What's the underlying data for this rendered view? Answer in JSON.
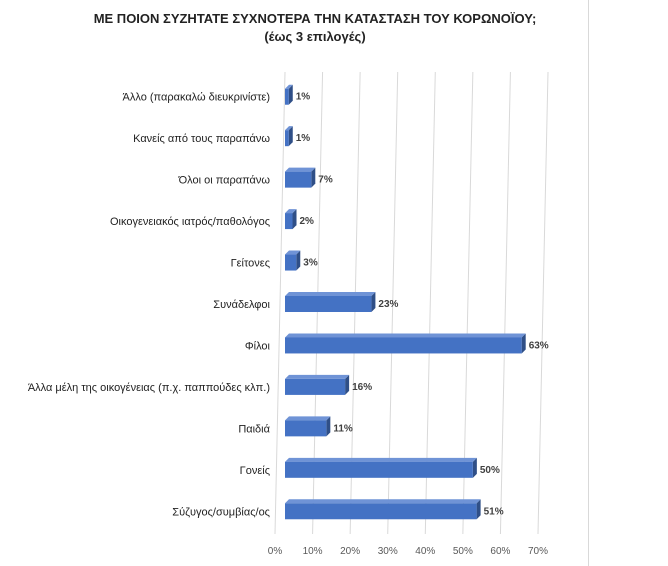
{
  "chart_data": {
    "type": "bar",
    "orientation": "horizontal",
    "title": "ΜΕ ΠΟΙΟΝ ΣΥΖΗΤΑΤΕ ΣΥΧΝΟΤΕΡΑ ΤΗΝ ΚΑΤΑΣΤΑΣΗ ΤΟΥ ΚΟΡΩΝΟΪΟΥ;",
    "subtitle": "(έως 3 επιλογές)",
    "categories": [
      "Άλλο (παρακαλώ διευκρινίστε)",
      "Κανείς από τους παραπάνω",
      "Όλοι οι παραπάνω",
      "Οικογενειακός ιατρός/παθολόγος",
      "Γείτονες",
      "Συνάδελφοι",
      "Φίλοι",
      "Άλλα μέλη της οικογένειας (π.χ. παππούδες κλπ.)",
      "Παιδιά",
      "Γονείς",
      "Σύζυγος/συμβίας/ος"
    ],
    "values": [
      1,
      1,
      7,
      2,
      3,
      23,
      63,
      16,
      11,
      50,
      51
    ],
    "data_labels": [
      "1%",
      "1%",
      "7%",
      "2%",
      "3%",
      "23%",
      "63%",
      "16%",
      "11%",
      "50%",
      "51%"
    ],
    "x_ticks": [
      "0%",
      "10%",
      "20%",
      "30%",
      "40%",
      "50%",
      "60%",
      "70%"
    ],
    "xlim": [
      0,
      70
    ],
    "grid": true,
    "legend": "none",
    "colors": {
      "bar_front": "#4472c4",
      "bar_side": "#2f4f87",
      "bar_top": "#6f93d6",
      "grid": "#d9d9d9",
      "text": "#222222"
    }
  }
}
